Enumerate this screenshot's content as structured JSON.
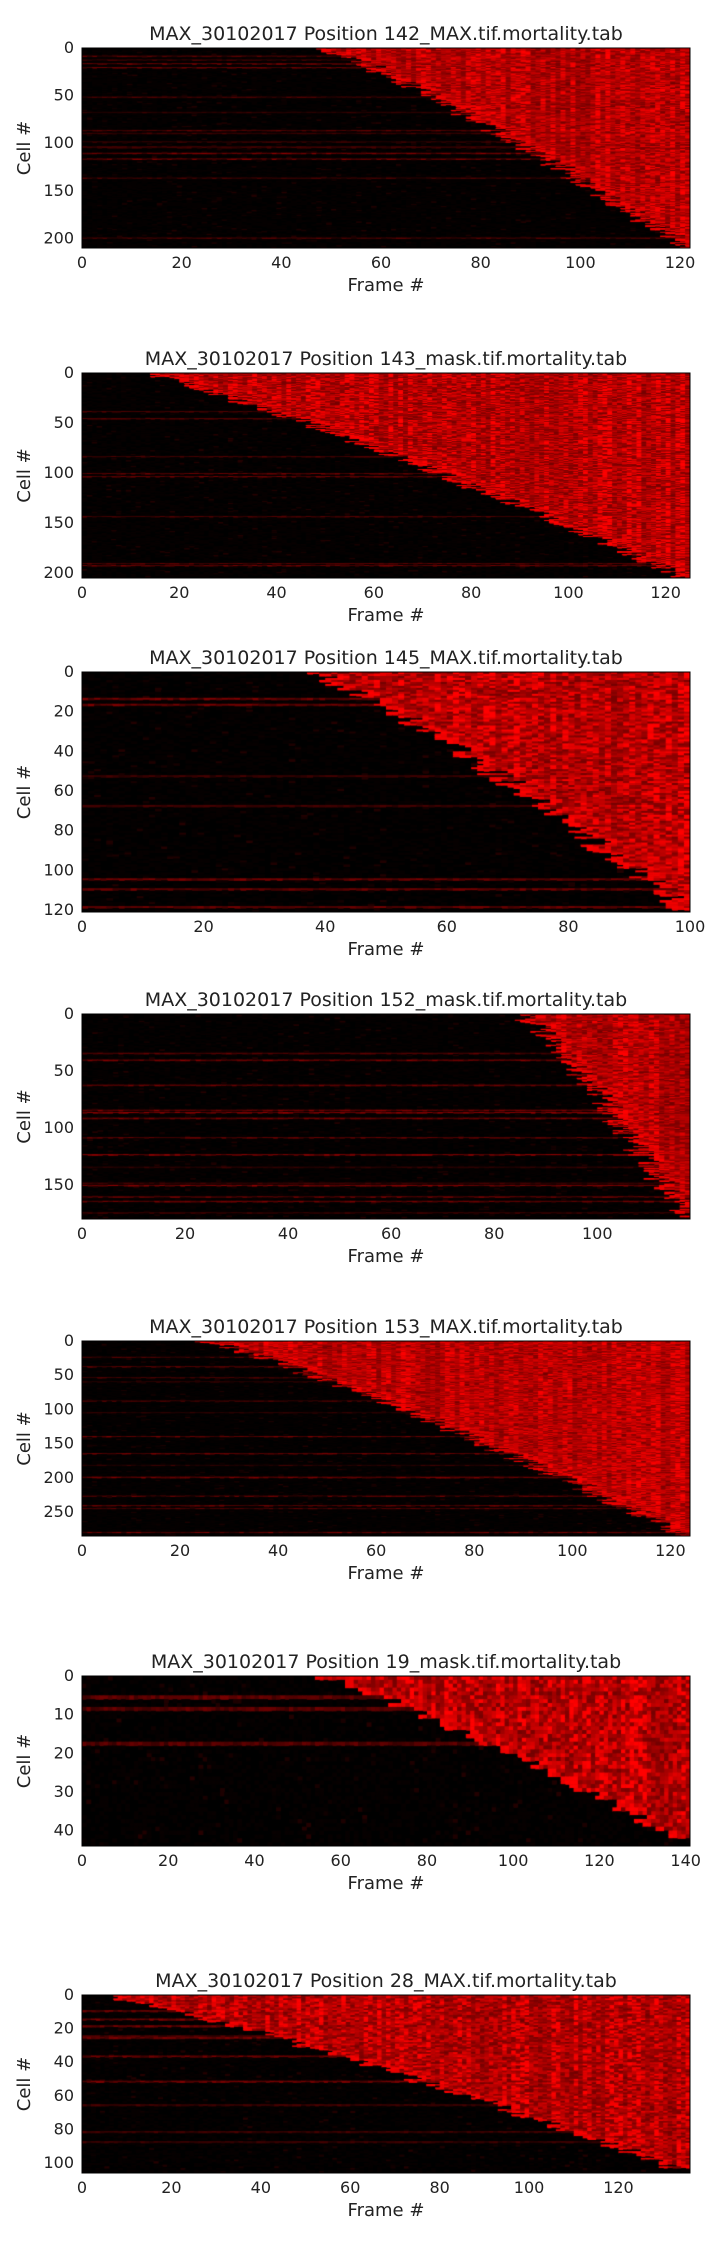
{
  "chart_data": [
    {
      "type": "heatmap",
      "title": "MAX_30102017 Position 142_MAX.tif.mortality.tab",
      "xlabel": "Frame #",
      "ylabel": "Cell #",
      "xlim": [
        0,
        122
      ],
      "ylim": [
        0,
        210
      ],
      "xticks": [
        0,
        20,
        40,
        60,
        80,
        100,
        120
      ],
      "yticks": [
        0,
        50,
        100,
        150,
        200
      ],
      "n_frames": 122,
      "n_cells": 210,
      "death_onset_frame_range": [
        48,
        121
      ],
      "colormap": [
        "#000000",
        "#ff0000"
      ],
      "grid": false
    },
    {
      "type": "heatmap",
      "title": "MAX_30102017 Position 143_mask.tif.mortality.tab",
      "xlabel": "Frame #",
      "ylabel": "Cell #",
      "xlim": [
        0,
        125
      ],
      "ylim": [
        0,
        205
      ],
      "xticks": [
        0,
        20,
        40,
        60,
        80,
        100,
        120
      ],
      "yticks": [
        0,
        50,
        100,
        150,
        200
      ],
      "n_frames": 125,
      "n_cells": 205,
      "death_onset_frame_range": [
        12,
        124
      ],
      "colormap": [
        "#000000",
        "#ff0000"
      ],
      "grid": false
    },
    {
      "type": "heatmap",
      "title": "MAX_30102017 Position 145_MAX.tif.mortality.tab",
      "xlabel": "Frame #",
      "ylabel": "Cell #",
      "xlim": [
        0,
        100
      ],
      "ylim": [
        0,
        121
      ],
      "xticks": [
        0,
        20,
        40,
        60,
        80,
        100
      ],
      "yticks": [
        0,
        20,
        40,
        60,
        80,
        100,
        120
      ],
      "n_frames": 100,
      "n_cells": 121,
      "death_onset_frame_range": [
        38,
        99
      ],
      "colormap": [
        "#000000",
        "#ff0000"
      ],
      "grid": false
    },
    {
      "type": "heatmap",
      "title": "MAX_30102017 Position 152_mask.tif.mortality.tab",
      "xlabel": "Frame #",
      "ylabel": "Cell #",
      "xlim": [
        0,
        118
      ],
      "ylim": [
        0,
        180
      ],
      "xticks": [
        0,
        20,
        40,
        60,
        80,
        100
      ],
      "yticks": [
        0,
        50,
        100,
        150
      ],
      "n_frames": 118,
      "n_cells": 180,
      "death_onset_frame_range": [
        85,
        117
      ],
      "colormap": [
        "#000000",
        "#ff0000"
      ],
      "grid": false
    },
    {
      "type": "heatmap",
      "title": "MAX_30102017 Position 153_MAX.tif.mortality.tab",
      "xlabel": "Frame #",
      "ylabel": "Cell #",
      "xlim": [
        0,
        124
      ],
      "ylim": [
        0,
        285
      ],
      "xticks": [
        0,
        20,
        40,
        60,
        80,
        100,
        120
      ],
      "yticks": [
        0,
        50,
        100,
        150,
        200,
        250
      ],
      "n_frames": 124,
      "n_cells": 285,
      "death_onset_frame_range": [
        25,
        123
      ],
      "colormap": [
        "#000000",
        "#ff0000"
      ],
      "grid": false
    },
    {
      "type": "heatmap",
      "title": "MAX_30102017 Position 19_mask.tif.mortality.tab",
      "xlabel": "Frame #",
      "ylabel": "Cell #",
      "xlim": [
        0,
        141
      ],
      "ylim": [
        0,
        44
      ],
      "xticks": [
        0,
        20,
        40,
        60,
        80,
        100,
        120,
        140
      ],
      "yticks": [
        0,
        10,
        20,
        30,
        40
      ],
      "n_frames": 141,
      "n_cells": 44,
      "death_onset_frame_range": [
        55,
        140
      ],
      "colormap": [
        "#000000",
        "#ff0000"
      ],
      "grid": false
    },
    {
      "type": "heatmap",
      "title": "MAX_30102017 Position 28_MAX.tif.mortality.tab",
      "xlabel": "Frame #",
      "ylabel": "Cell #",
      "xlim": [
        0,
        136
      ],
      "ylim": [
        0,
        106
      ],
      "xticks": [
        0,
        20,
        40,
        60,
        80,
        100,
        120
      ],
      "yticks": [
        0,
        20,
        40,
        60,
        80,
        100
      ],
      "n_frames": 136,
      "n_cells": 106,
      "death_onset_frame_range": [
        5,
        135
      ],
      "colormap": [
        "#000000",
        "#ff0000"
      ],
      "grid": false
    }
  ]
}
